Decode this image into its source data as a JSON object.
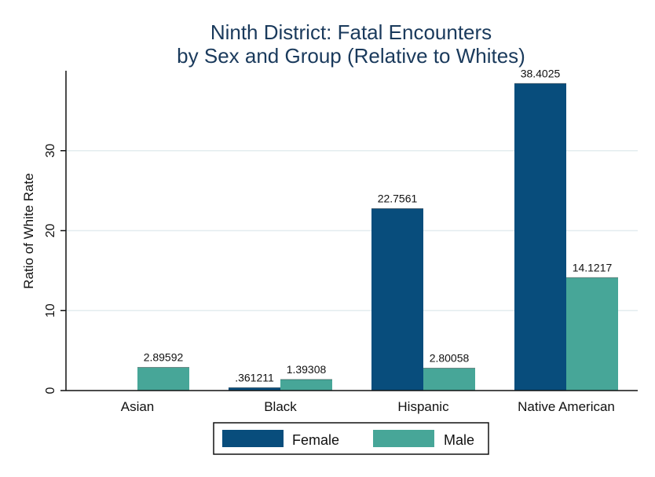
{
  "chart_data": {
    "type": "bar",
    "title": [
      "Ninth District: Fatal Encounters",
      "by Sex and Group (Relative to Whites)"
    ],
    "ylabel": "Ratio of White Rate",
    "xlabel": "",
    "categories": [
      "Asian",
      "Black",
      "Hispanic",
      "Native American"
    ],
    "series": [
      {
        "name": "Female",
        "color": "#084d7c",
        "values": [
          null,
          0.361211,
          22.7561,
          38.4025
        ],
        "labels": [
          "",
          ".361211",
          "22.7561",
          "38.4025"
        ]
      },
      {
        "name": "Male",
        "color": "#47a698",
        "values": [
          2.89592,
          1.39308,
          2.80058,
          14.1217
        ],
        "labels": [
          "2.89592",
          "1.39308",
          "2.80058",
          "14.1217"
        ]
      }
    ],
    "ylim": [
      0,
      40
    ],
    "yticks": [
      0,
      10,
      20,
      30
    ],
    "grid": true,
    "legend_position": "bottom"
  }
}
